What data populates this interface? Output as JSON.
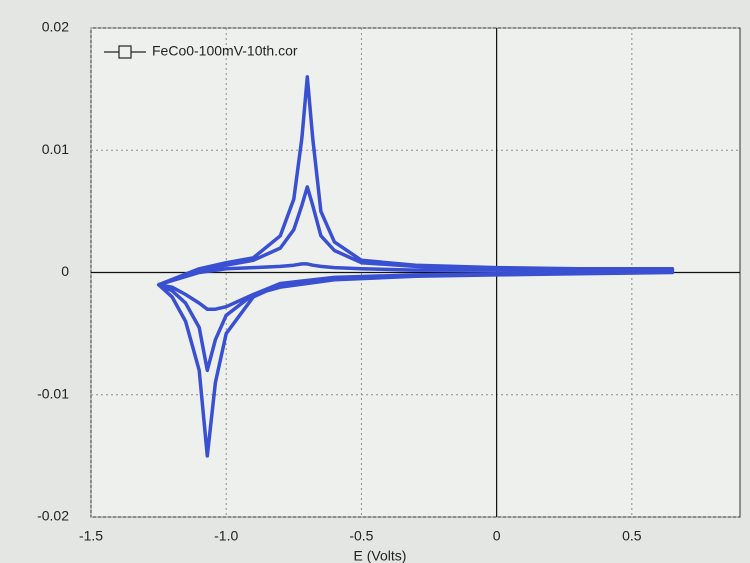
{
  "chart_data": {
    "type": "line",
    "x_label": "E (Volts)",
    "xlim": [
      -1.5,
      0.9
    ],
    "xticks": [
      -1.5,
      {
        "value": -1,
        "label": "-1.0"
      },
      -0.5,
      0,
      0.5
    ],
    "ylim": [
      -0.02,
      0.02
    ],
    "yticks": [
      -0.02,
      -0.01,
      0,
      0.01,
      0.02
    ],
    "grid": true,
    "legend": "top-left",
    "series": [
      {
        "name": "FeCo0-100mV-10th.cor",
        "color": "#3a50d2",
        "x": [
          -1.25,
          -1.1,
          -1.0,
          -0.9,
          -0.8,
          -0.75,
          -0.72,
          -0.7,
          -0.68,
          -0.65,
          -0.6,
          -0.5,
          -0.3,
          0,
          0.3,
          0.65,
          0.65,
          0.3,
          0,
          -0.3,
          -0.6,
          -0.8,
          -0.9,
          -1.0,
          -1.04,
          -1.07,
          -1.1,
          -1.15,
          -1.2,
          -1.25,
          -1.25,
          -1.1,
          -1.0,
          -0.9,
          -0.8,
          -0.75,
          -0.72,
          -0.7,
          -0.68,
          -0.65,
          -0.6,
          -0.5,
          -0.3,
          0,
          0.3,
          0.65,
          0.65,
          0.3,
          0,
          -0.3,
          -0.6,
          -0.8,
          -0.9,
          -1.0,
          -1.04,
          -1.07,
          -1.1,
          -1.15,
          -1.2,
          -1.25,
          -1.25,
          -1.1,
          -1.0,
          -0.9,
          -0.8,
          -0.75,
          -0.72,
          -0.7,
          -0.68,
          -0.65,
          -0.6,
          -0.5,
          -0.3,
          0,
          0.3,
          0.65,
          0.65,
          0.3,
          0,
          -0.3,
          -0.6,
          -0.8,
          -0.9,
          -1.0,
          -1.04,
          -1.07,
          -1.1,
          -1.15,
          -1.2,
          -1.25
        ],
        "values": [
          -0.001,
          0,
          0.0003,
          0.0004,
          0.0005,
          0.0006,
          0.0007,
          0.0007,
          0.0006,
          0.0005,
          0.0004,
          0.0003,
          0.0002,
          0.0002,
          0.0001,
          0.0001,
          0,
          -0.0001,
          -0.0002,
          -0.0003,
          -0.0006,
          -0.0012,
          -0.0018,
          -0.0028,
          -0.003,
          -0.003,
          -0.0025,
          -0.0018,
          -0.0012,
          -0.001,
          -0.001,
          0.0002,
          0.0006,
          0.001,
          0.002,
          0.0035,
          0.0055,
          0.007,
          0.0055,
          0.003,
          0.0018,
          0.0008,
          0.0005,
          0.0003,
          0.0002,
          0.0002,
          0.0001,
          0,
          -0.0001,
          -0.0002,
          -0.0004,
          -0.0009,
          -0.0018,
          -0.0035,
          -0.0055,
          -0.008,
          -0.0045,
          -0.0025,
          -0.0015,
          -0.001,
          -0.001,
          0.0003,
          0.0008,
          0.0012,
          0.003,
          0.006,
          0.011,
          0.016,
          0.011,
          0.005,
          0.0025,
          0.001,
          0.0006,
          0.0004,
          0.0003,
          0.0003,
          0.0001,
          0,
          -0.0001,
          -0.0002,
          -0.0004,
          -0.001,
          -0.002,
          -0.005,
          -0.009,
          -0.015,
          -0.008,
          -0.004,
          -0.002,
          -0.001
        ]
      }
    ]
  }
}
